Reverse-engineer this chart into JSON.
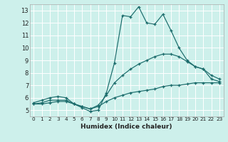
{
  "xlabel": "Humidex (Indice chaleur)",
  "bg_color": "#cdf0eb",
  "grid_color": "#ffffff",
  "line_color": "#1a6b6b",
  "xlim_min": -0.5,
  "xlim_max": 23.5,
  "ylim_min": 4.5,
  "ylim_max": 13.5,
  "xticks": [
    0,
    1,
    2,
    3,
    4,
    5,
    6,
    7,
    8,
    9,
    10,
    11,
    12,
    13,
    14,
    15,
    16,
    17,
    18,
    19,
    20,
    21,
    22,
    23
  ],
  "yticks": [
    5,
    6,
    7,
    8,
    9,
    10,
    11,
    12,
    13
  ],
  "hours": [
    0,
    1,
    2,
    3,
    4,
    5,
    6,
    7,
    8,
    9,
    10,
    11,
    12,
    13,
    14,
    15,
    16,
    17,
    18,
    19,
    20,
    21,
    22,
    23
  ],
  "line_max": [
    5.6,
    5.8,
    6.0,
    6.1,
    6.0,
    5.5,
    5.2,
    4.9,
    5.0,
    6.4,
    8.8,
    12.6,
    12.5,
    13.3,
    12.0,
    11.9,
    12.7,
    11.4,
    10.0,
    9.0,
    8.5,
    8.3,
    7.5,
    7.3
  ],
  "line_mean": [
    5.5,
    5.6,
    5.8,
    5.8,
    5.8,
    5.5,
    5.3,
    5.1,
    5.4,
    6.2,
    7.2,
    7.8,
    8.3,
    8.7,
    9.0,
    9.3,
    9.5,
    9.5,
    9.3,
    8.9,
    8.5,
    8.3,
    7.8,
    7.5
  ],
  "line_min": [
    5.5,
    5.5,
    5.6,
    5.7,
    5.7,
    5.5,
    5.3,
    5.1,
    5.3,
    5.7,
    6.0,
    6.2,
    6.4,
    6.5,
    6.6,
    6.7,
    6.9,
    7.0,
    7.0,
    7.1,
    7.2,
    7.2,
    7.2,
    7.2
  ]
}
